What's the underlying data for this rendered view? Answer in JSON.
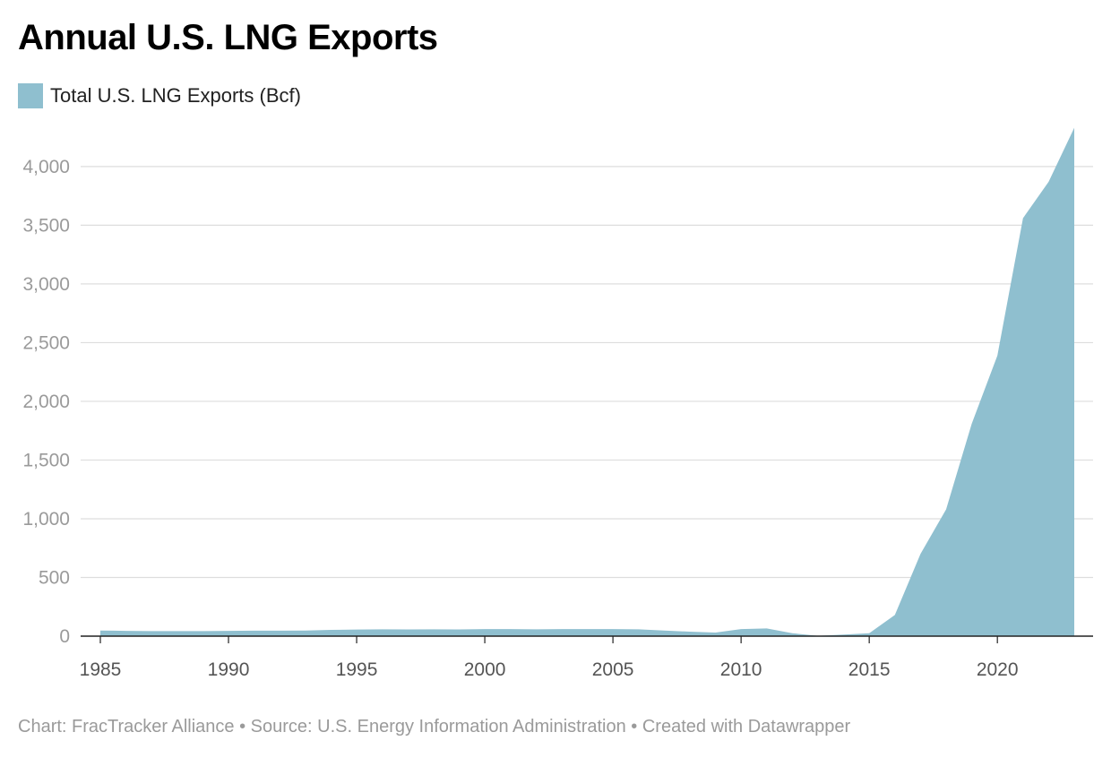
{
  "title": "Annual U.S. LNG Exports",
  "legend": {
    "label": "Total U.S. LNG Exports (Bcf)",
    "color": "#8fbfcf"
  },
  "footer": "Chart: FracTracker Alliance • Source: U.S. Energy Information Administration • Created with Datawrapper",
  "chart_data": {
    "type": "area",
    "title": "Annual U.S. LNG Exports",
    "xlabel": "",
    "ylabel": "",
    "ylim": [
      0,
      4350
    ],
    "xlim": [
      1985,
      2023
    ],
    "grid": true,
    "legend_position": "top-left",
    "yticks": [
      0,
      500,
      1000,
      1500,
      2000,
      2500,
      3000,
      3500,
      4000
    ],
    "ytick_labels": [
      "0",
      "500",
      "1,000",
      "1,500",
      "2,000",
      "2,500",
      "3,000",
      "3,500",
      "4,000"
    ],
    "xticks": [
      1985,
      1990,
      1995,
      2000,
      2005,
      2010,
      2015,
      2020
    ],
    "xtick_labels": [
      "1985",
      "1990",
      "1995",
      "2000",
      "2005",
      "2010",
      "2015",
      "2020"
    ],
    "series": [
      {
        "name": "Total U.S. LNG Exports (Bcf)",
        "color": "#8fbfcf",
        "x": [
          1985,
          1986,
          1987,
          1988,
          1989,
          1990,
          1991,
          1992,
          1993,
          1994,
          1995,
          1996,
          1997,
          1998,
          1999,
          2000,
          2001,
          2002,
          2003,
          2004,
          2005,
          2006,
          2007,
          2008,
          2009,
          2010,
          2011,
          2012,
          2013,
          2014,
          2015,
          2016,
          2017,
          2018,
          2019,
          2020,
          2021,
          2022,
          2023
        ],
        "values": [
          48,
          45,
          43,
          43,
          43,
          45,
          47,
          47,
          48,
          53,
          56,
          58,
          57,
          58,
          57,
          60,
          60,
          58,
          60,
          60,
          60,
          58,
          48,
          38,
          31,
          60,
          66,
          25,
          3,
          13,
          25,
          180,
          700,
          1080,
          1810,
          2390,
          3560,
          3870,
          4330
        ]
      }
    ]
  }
}
